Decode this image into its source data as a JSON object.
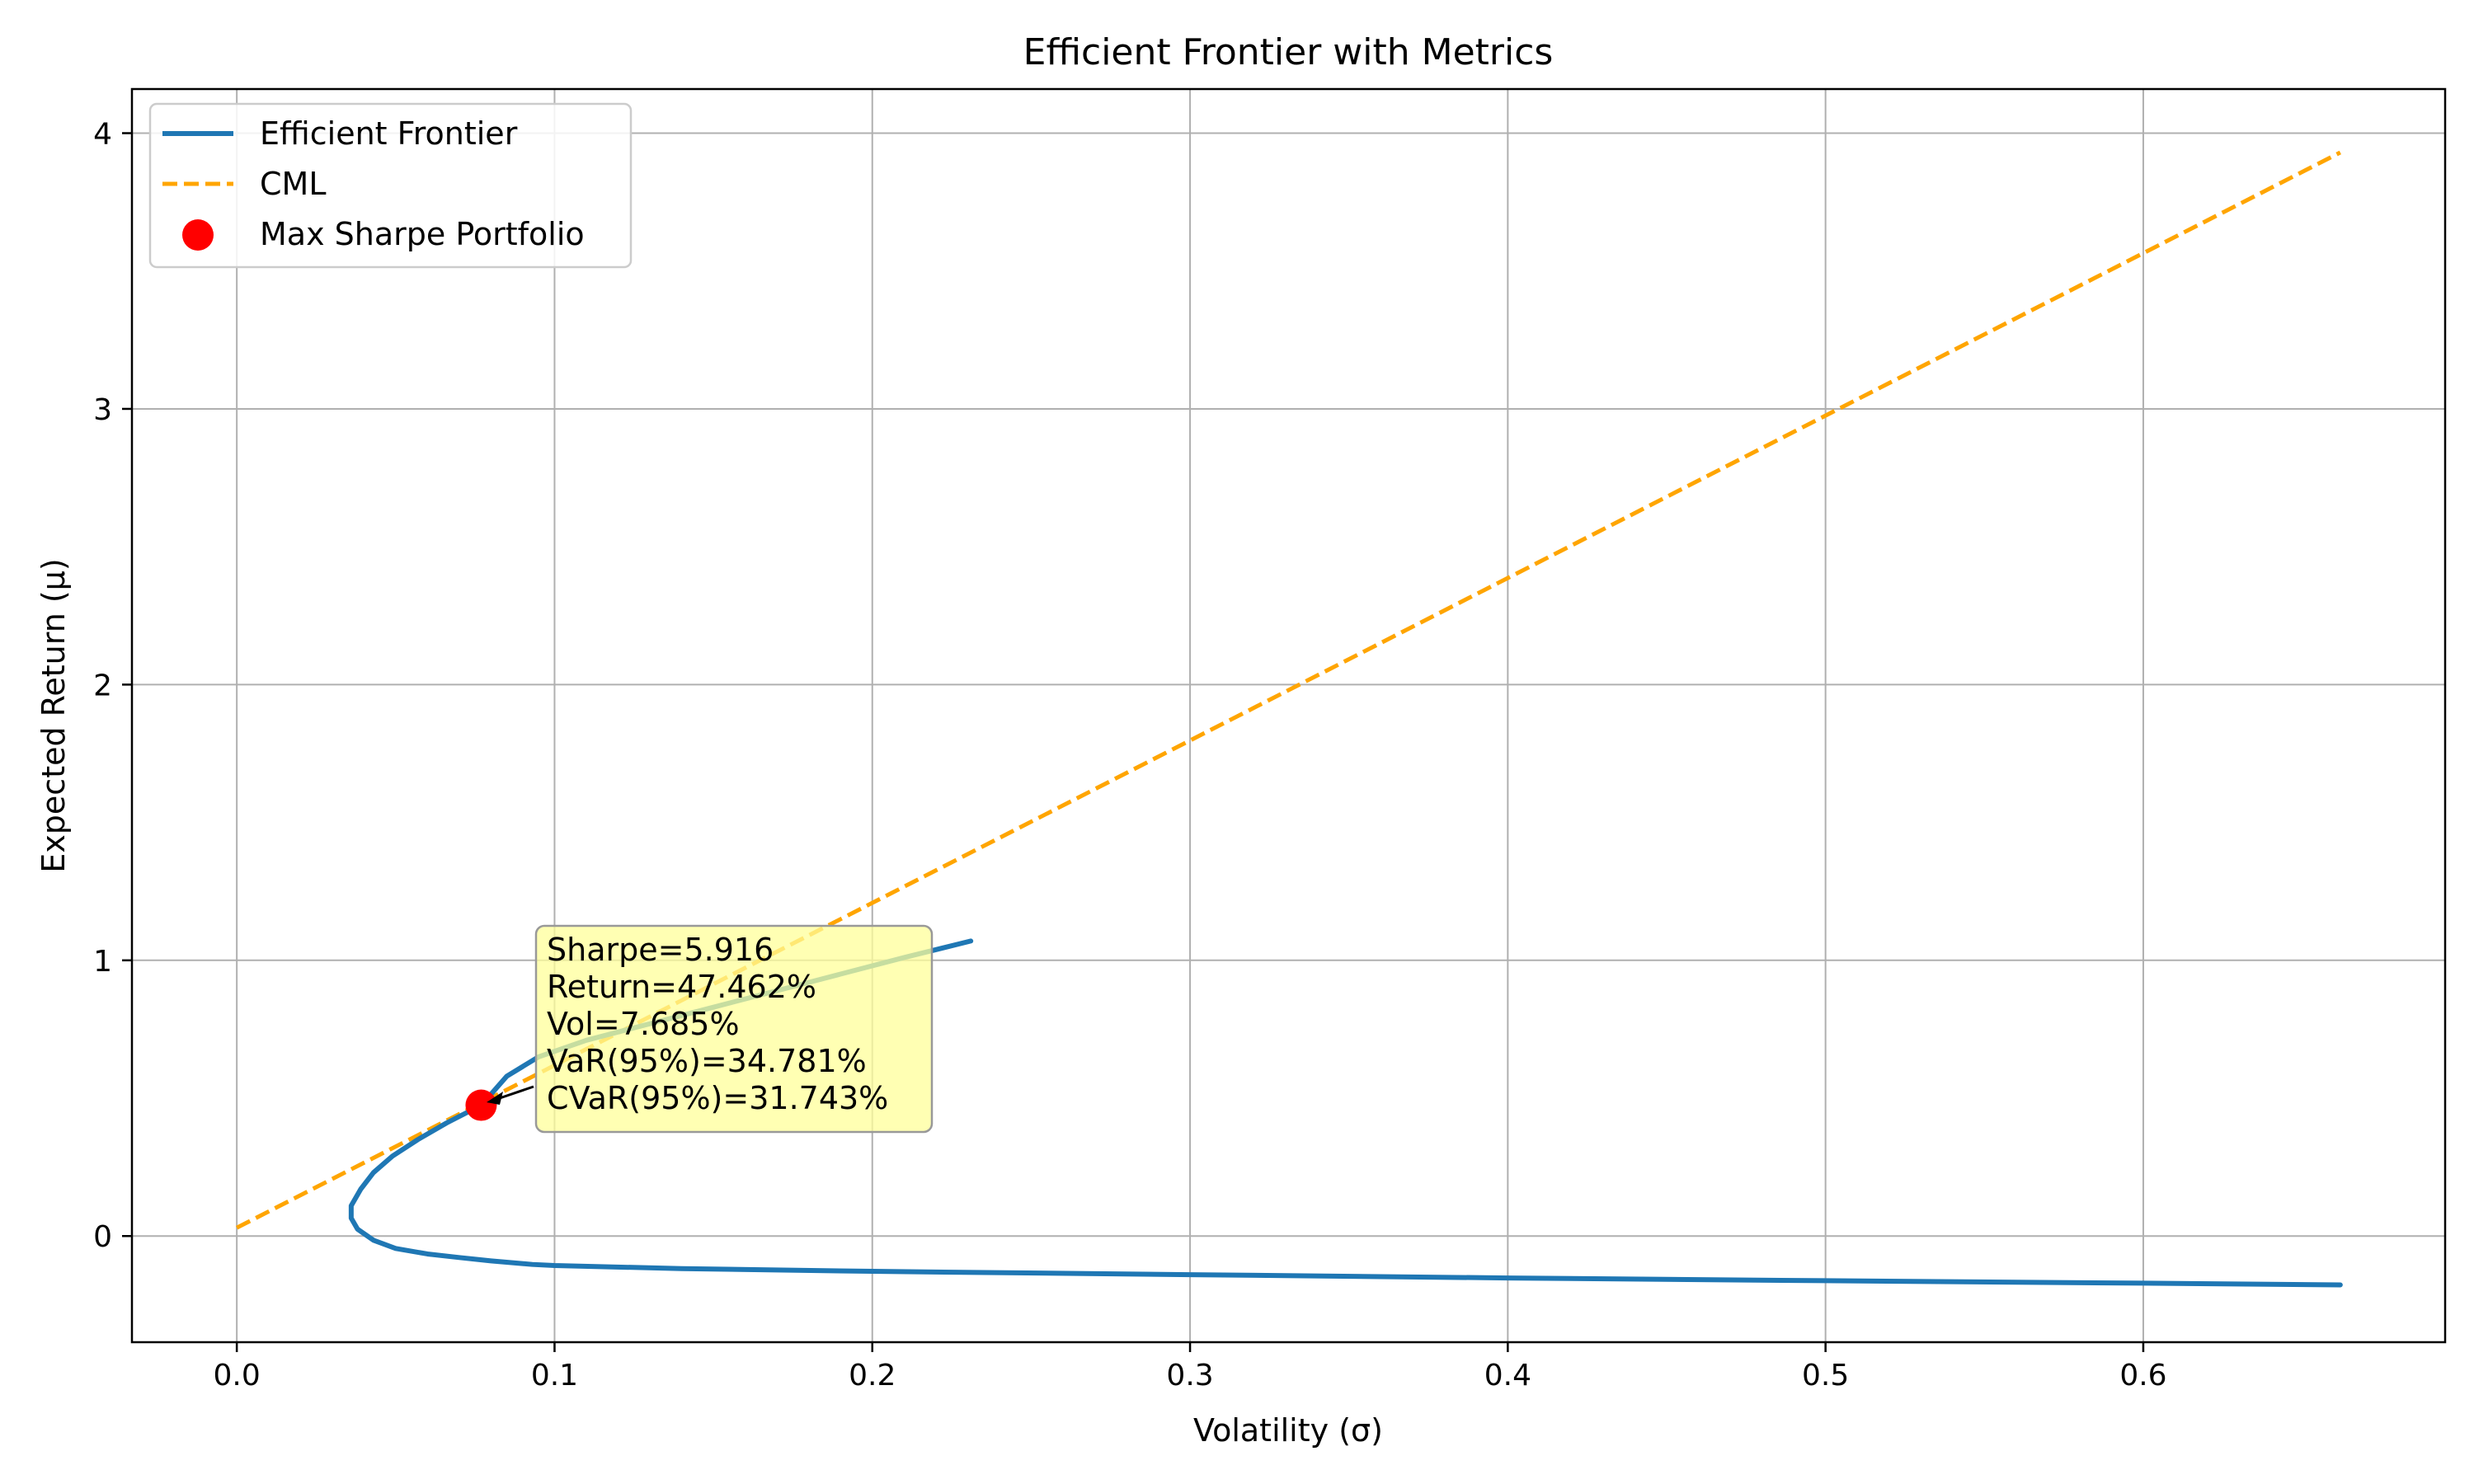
{
  "chart_data": {
    "type": "line",
    "title": "Efficient Frontier with Metrics",
    "xlabel": "Volatility (σ)",
    "ylabel": "Expected Return (μ)",
    "xlim": [
      -0.033,
      0.695
    ],
    "ylim": [
      -0.385,
      4.16
    ],
    "xticks": [
      0.0,
      0.1,
      0.2,
      0.3,
      0.4,
      0.5,
      0.6
    ],
    "xtick_labels": [
      "0.0",
      "0.1",
      "0.2",
      "0.3",
      "0.4",
      "0.5",
      "0.6"
    ],
    "yticks": [
      0,
      1,
      2,
      3,
      4
    ],
    "ytick_labels": [
      "0",
      "1",
      "2",
      "3",
      "4"
    ],
    "grid": true,
    "legend_position": "top-left",
    "series": [
      {
        "name": "Efficient Frontier",
        "style": "solid",
        "color": "#1f77b4",
        "points": [
          [
            0.231,
            1.07
          ],
          [
            0.21,
            1.01
          ],
          [
            0.19,
            0.95
          ],
          [
            0.17,
            0.89
          ],
          [
            0.15,
            0.83
          ],
          [
            0.13,
            0.77
          ],
          [
            0.11,
            0.71
          ],
          [
            0.095,
            0.65
          ],
          [
            0.085,
            0.58
          ],
          [
            0.077,
            0.475
          ],
          [
            0.066,
            0.41
          ],
          [
            0.057,
            0.35
          ],
          [
            0.049,
            0.29
          ],
          [
            0.043,
            0.23
          ],
          [
            0.039,
            0.17
          ],
          [
            0.036,
            0.11
          ],
          [
            0.036,
            0.065
          ],
          [
            0.038,
            0.025
          ],
          [
            0.043,
            -0.015
          ],
          [
            0.05,
            -0.045
          ],
          [
            0.06,
            -0.065
          ],
          [
            0.07,
            -0.078
          ],
          [
            0.08,
            -0.09
          ],
          [
            0.093,
            -0.103
          ],
          [
            0.1,
            -0.107
          ],
          [
            0.14,
            -0.118
          ],
          [
            0.2,
            -0.128
          ],
          [
            0.3,
            -0.14
          ],
          [
            0.4,
            -0.152
          ],
          [
            0.5,
            -0.162
          ],
          [
            0.6,
            -0.171
          ],
          [
            0.662,
            -0.177
          ]
        ]
      },
      {
        "name": "CML",
        "style": "dashed",
        "color": "#ffa500",
        "points": [
          [
            0.0,
            0.03
          ],
          [
            0.662,
            3.93
          ]
        ]
      }
    ],
    "highlight_point": {
      "name": "Max Sharpe Portfolio",
      "color": "#ff0000",
      "x": 0.0769,
      "y": 0.4746
    },
    "annotation": {
      "lines": [
        "Sharpe=5.916",
        "Return=47.462%",
        "Vol=7.685%",
        "VaR(95%)=34.781%",
        "CVaR(95%)=31.743%"
      ],
      "box_color": "#ffff99"
    }
  }
}
